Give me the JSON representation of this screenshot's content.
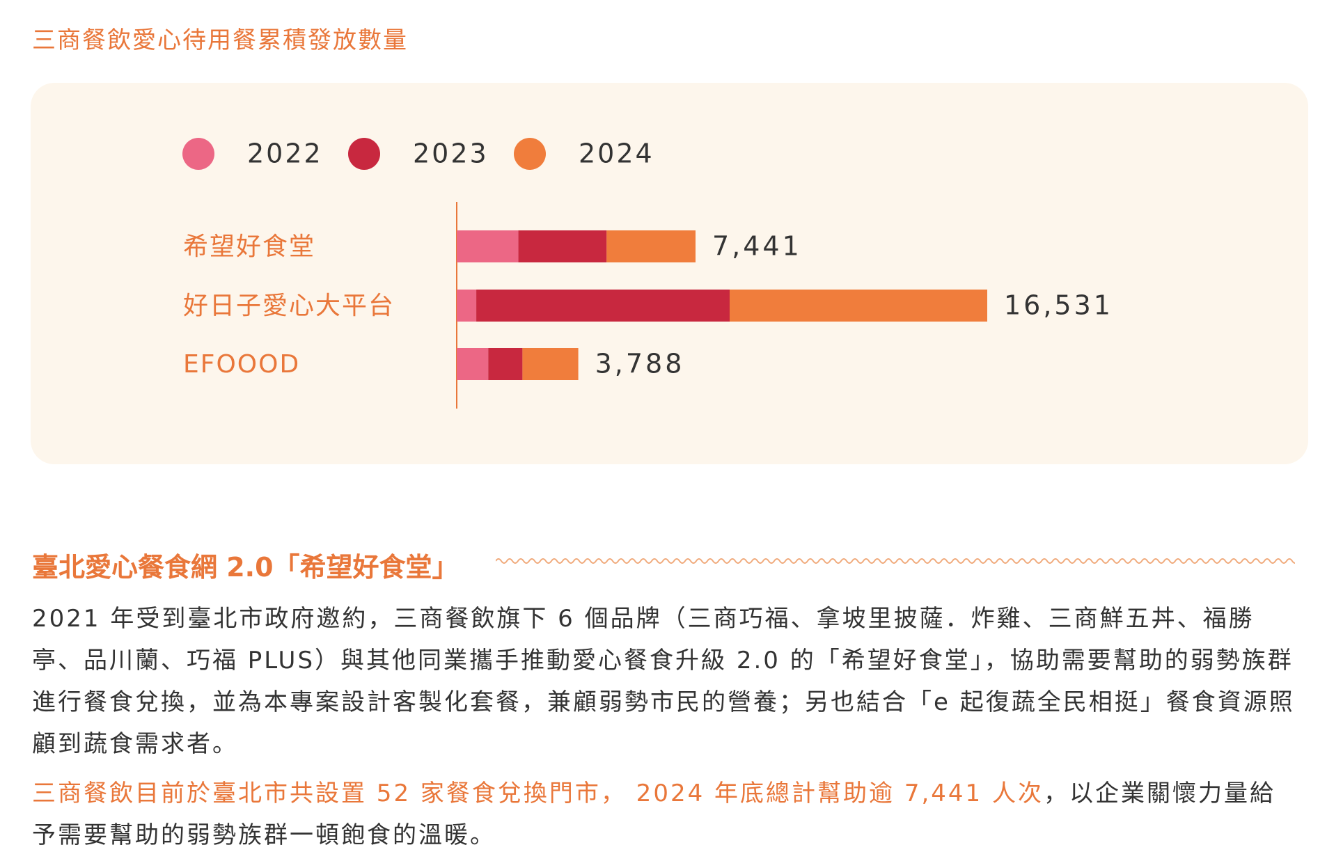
{
  "chart_data": {
    "type": "stacked-bar-horizontal",
    "title": "三商餐飲愛心待用餐累積發放數量",
    "categories": [
      "希望好食堂",
      "好日子愛心大平台",
      "EFOOOD"
    ],
    "series": [
      {
        "name": "2022",
        "color": "#ec6785",
        "values": [
          1921,
          609,
          982
        ]
      },
      {
        "name": "2023",
        "color": "#c8283f",
        "values": [
          2750,
          7895,
          1066
        ]
      },
      {
        "name": "2024",
        "color": "#f07d3c",
        "values": [
          2770,
          8027,
          1740
        ]
      }
    ],
    "totals": [
      7441,
      16531,
      3788
    ],
    "total_labels": [
      "7,441",
      "16,531",
      "3,788"
    ],
    "label_color": "#e9773a"
  },
  "section": {
    "heading": "臺北愛心餐食網 2.0「希望好食堂」",
    "paragraph1": "2021 年受到臺北市政府邀約，三商餐飲旗下 6 個品牌（三商巧福、拿坡里披薩．炸雞、三商鮮五丼、福勝亭、品川蘭、巧福 PLUS）與其他同業攜手推動愛心餐食升級 2.0 的「希望好食堂」，協助需要幫助的弱勢族群進行餐食兌換，並為本專案設計客製化套餐，兼顧弱勢市民的營養；另也結合「e 起復蔬全民相挺」餐食資源照顧到蔬食需求者。",
    "paragraph2_highlight": "三商餐飲目前於臺北市共設置 52 家餐食兌換門市， 2024 年底總計幫助逾 7,441 人次",
    "paragraph2_rest": "，以企業關懷力量給予需要幫助的弱勢族群一頓飽食的溫暖。"
  }
}
